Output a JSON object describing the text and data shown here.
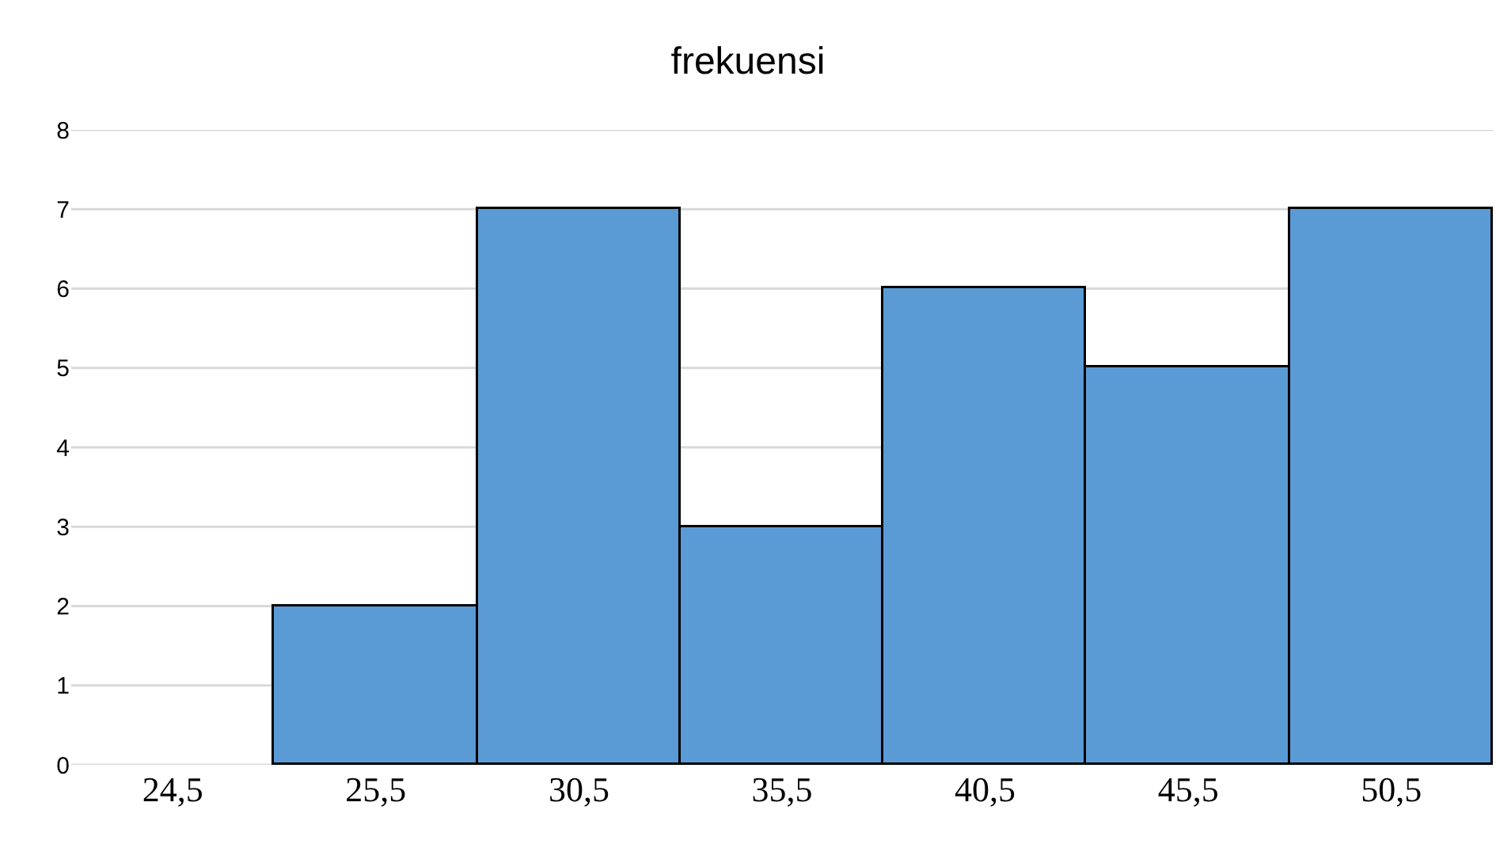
{
  "chart_data": {
    "type": "bar",
    "title": "frekuensi",
    "categories": [
      "24,5",
      "25,5",
      "30,5",
      "35,5",
      "40,5",
      "45,5",
      "50,5"
    ],
    "values": [
      0,
      2,
      7,
      3,
      6,
      5,
      7
    ],
    "color": "#5b9bd5",
    "ylim": [
      0,
      8
    ],
    "yticks": [
      0,
      1,
      2,
      3,
      4,
      5,
      6,
      7,
      8
    ],
    "grid": "y",
    "legend": false
  }
}
